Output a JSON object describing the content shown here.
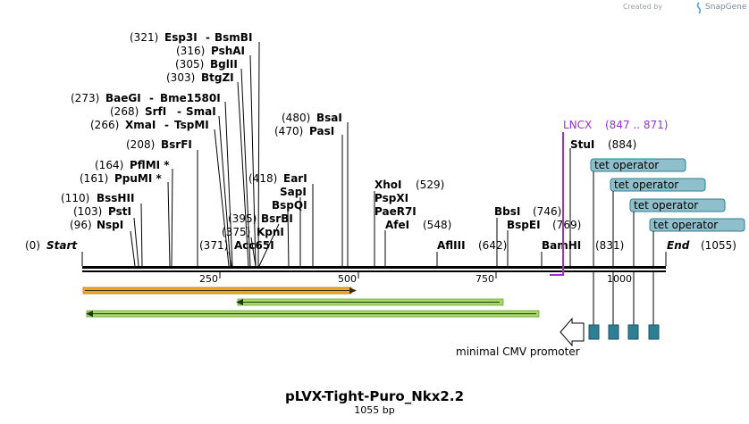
{
  "credit": {
    "prefix": "Created by",
    "brand": "SnapGene"
  },
  "map_title": "pLVX-Tight-Puro_Nkx2.2",
  "map_length_label": "1055 bp",
  "ends": {
    "start_pos": "(0)",
    "start_label": "Start",
    "end_label": "End",
    "end_pos": "(1055)"
  },
  "ticks": [
    "250",
    "500",
    "750",
    "1000"
  ],
  "promoter": {
    "name": "LNCX",
    "range": "(847 .. 871)"
  },
  "feature_label": "minimal CMV promoter",
  "tet_label": "tet operator",
  "sites": {
    "esp3i": {
      "pos": "(321)",
      "name": "Esp3I",
      "sep": "-",
      "alt": "BsmBI"
    },
    "pshai": {
      "pos": "(316)",
      "name": "PshAI"
    },
    "bglii": {
      "pos": "(305)",
      "name": "BglII"
    },
    "btgzi": {
      "pos": "(303)",
      "name": "BtgZI"
    },
    "baegi": {
      "pos": "(273)",
      "name": "BaeGI",
      "sep": "-",
      "alt": "Bme1580I"
    },
    "srfi": {
      "pos": "(268)",
      "name": "SrfI",
      "sep": "-",
      "alt": "SmaI"
    },
    "xmai": {
      "pos": "(266)",
      "name": "XmaI",
      "sep": "-",
      "alt": "TspMI"
    },
    "bsrfi": {
      "pos": "(208)",
      "name": "BsrFI"
    },
    "pfimi": {
      "pos": "(164)",
      "name": "PflMI *"
    },
    "ppumi": {
      "pos": "(161)",
      "name": "PpuMI *"
    },
    "bsshii": {
      "pos": "(110)",
      "name": "BssHII"
    },
    "psti": {
      "pos": "(103)",
      "name": "PstI"
    },
    "nspi": {
      "pos": "(96)",
      "name": "NspI"
    },
    "bsai": {
      "pos": "(480)",
      "name": "BsaI"
    },
    "pasi": {
      "pos": "(470)",
      "name": "PasI"
    },
    "eari": {
      "pos": "(418)",
      "name": "EarI"
    },
    "sapi": {
      "name": "SapI"
    },
    "bspqi": {
      "name": "BspQI"
    },
    "bsrbi": {
      "pos": "(395)",
      "name": "BsrBI"
    },
    "kpni": {
      "pos": "(375)",
      "name": "KpnI"
    },
    "acc65i": {
      "pos": "(371)",
      "name": "Acc65I"
    },
    "xhoi": {
      "name": "XhoI",
      "pos": "(529)"
    },
    "pspxi": {
      "name": "PspXI"
    },
    "paer7i": {
      "name": "PaeR7I"
    },
    "afei": {
      "name": "AfeI",
      "pos": "(548)"
    },
    "afliii": {
      "name": "AflIII",
      "pos": "(642)"
    },
    "bbsi": {
      "name": "BbsI",
      "pos": "(746)"
    },
    "bspei": {
      "name": "BspEI",
      "pos": "(769)"
    },
    "bamhi": {
      "name": "BamHI",
      "pos": "(831)"
    },
    "stui": {
      "name": "StuI",
      "pos": "(884)"
    }
  },
  "colors": {
    "orange": "#f5a623",
    "green": "#8fd14f",
    "tet_fill": "#8fbfca",
    "tet_box": "#2e7f94",
    "promoter": "#9b30d6"
  }
}
